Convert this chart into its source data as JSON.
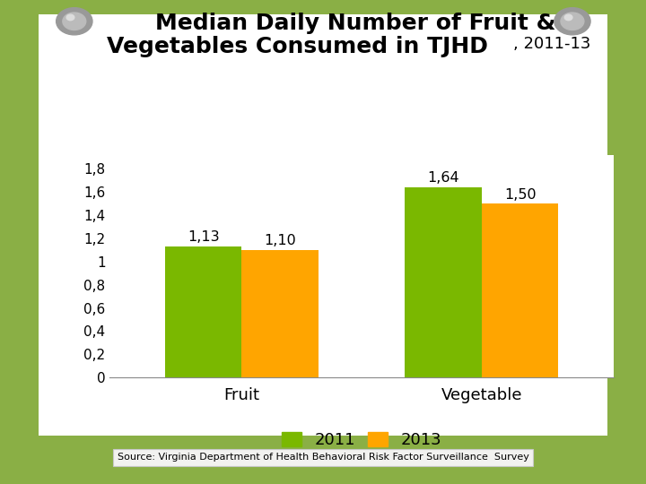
{
  "title_bold": "Median Daily Number of Fruit &\nVegetables Consumed in TJHD",
  "title_suffix": ", 2011-13",
  "categories": [
    "Fruit",
    "Vegetable"
  ],
  "values_2011": [
    1.13,
    1.64
  ],
  "values_2013": [
    1.1,
    1.5
  ],
  "labels_2011": [
    "1,13",
    "1,64"
  ],
  "labels_2013": [
    "1,10",
    "1,50"
  ],
  "color_2011": "#7AB800",
  "color_2013": "#FFA500",
  "yticks": [
    0,
    0.2,
    0.4,
    0.6,
    0.8,
    1.0,
    1.2,
    1.4,
    1.6,
    1.8
  ],
  "ytick_labels": [
    "0",
    "0,2",
    "0,4",
    "0,6",
    "0,8",
    "1",
    "1,2",
    "1,4",
    "1,6",
    "1,8"
  ],
  "ylim": [
    0,
    1.92
  ],
  "background_outer": "#8AAF45",
  "background_paper": "#FFFFFF",
  "source_text": "Source: Virginia Department of Health Behavioral Risk Factor Surveillance  Survey",
  "bar_width": 0.32,
  "legend_labels": [
    "2011",
    "2013"
  ],
  "title_fontsize": 18,
  "suffix_fontsize": 13
}
